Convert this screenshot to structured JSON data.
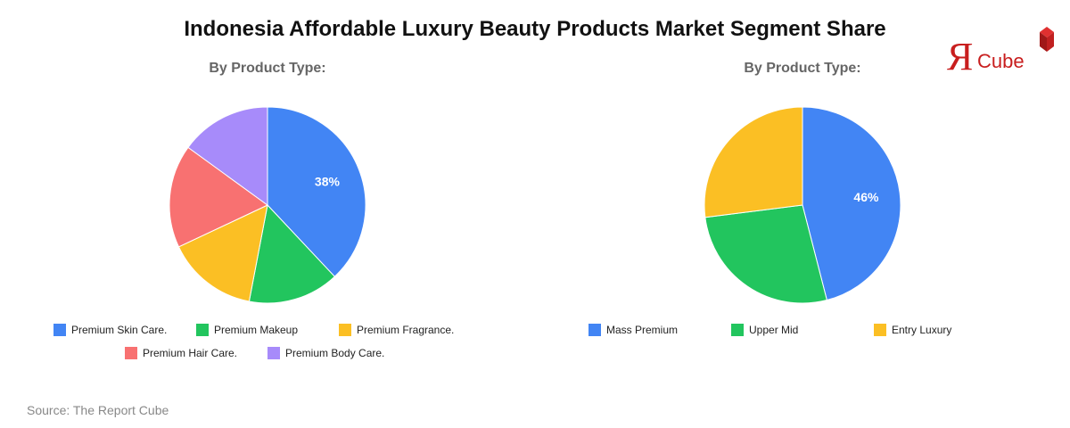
{
  "title": "Indonesia Affordable Luxury Beauty Products Market Segment Share",
  "logo": {
    "text": "Cube",
    "mark": "Я"
  },
  "source": "Source: The Report Cube",
  "chart_data": [
    {
      "type": "pie",
      "title": "By Product Type:",
      "labels": [
        "Premium Skin Care.",
        "Premium Makeup",
        "Premium Fragrance.",
        "Premium Hair Care.",
        "Premium Body Care."
      ],
      "values": [
        38,
        15,
        15,
        17,
        15
      ],
      "colors": [
        "#4285F4",
        "#22C55E",
        "#FBBF24",
        "#F87171",
        "#A78BFA"
      ],
      "data_labels": [
        "38%",
        "",
        "",
        "",
        ""
      ],
      "legend_position": "bottom"
    },
    {
      "type": "pie",
      "title": "By Product Type:",
      "labels": [
        "Mass Premium",
        "Upper Mid",
        "Entry Luxury"
      ],
      "values": [
        46,
        27,
        27
      ],
      "colors": [
        "#4285F4",
        "#22C55E",
        "#FBBF24"
      ],
      "data_labels": [
        "46%",
        "",
        ""
      ],
      "legend_position": "bottom"
    }
  ]
}
